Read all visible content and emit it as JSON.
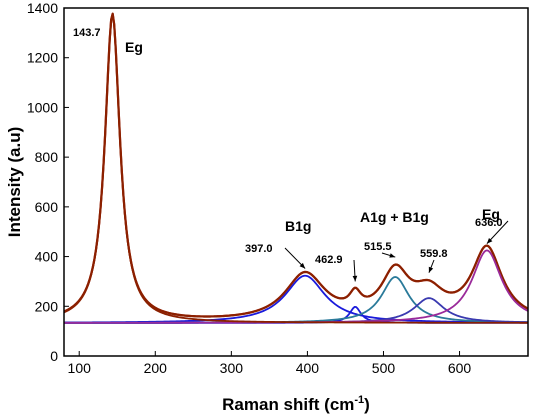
{
  "chart_data": {
    "type": "line",
    "xlabel": "Raman shift (cm",
    "xlabel_sup": "-1",
    "xlabel_close": ")",
    "ylabel": "Intensity (a.u)",
    "xlim": [
      80,
      690
    ],
    "ylim": [
      0,
      1400
    ],
    "x_ticks": [
      100,
      200,
      300,
      400,
      500,
      600
    ],
    "y_ticks": [
      0,
      200,
      400,
      600,
      800,
      1000,
      1200,
      1400
    ],
    "baseline": 133,
    "peaks": [
      {
        "center": 143.7,
        "height": 1240,
        "width": 12
      },
      {
        "center": 397.0,
        "height": 190,
        "width": 32
      },
      {
        "center": 462.9,
        "height": 65,
        "width": 9
      },
      {
        "center": 515.5,
        "height": 185,
        "width": 22
      },
      {
        "center": 559.8,
        "height": 100,
        "width": 24
      },
      {
        "center": 636.0,
        "height": 292,
        "width": 24
      }
    ],
    "series": [
      {
        "color": "#c0392b",
        "type": "sum"
      },
      {
        "color": "#8b2000",
        "type": "sum"
      },
      {
        "color": "#1a1adb",
        "peak": 1
      },
      {
        "color": "#1a1adb",
        "peak": 2
      },
      {
        "color": "#2a7a9a",
        "peak": 3
      },
      {
        "color": "#3a3ab0",
        "peak": 4
      },
      {
        "color": "#9a2a9a",
        "peak": 5
      },
      {
        "color": "#8b2000",
        "peak": 0
      }
    ],
    "annotations": [
      {
        "text": "143.7",
        "x": 143.7,
        "y": 1375
      },
      {
        "text": "397.0",
        "x": 397.0,
        "y": 352
      },
      {
        "text": "462.9",
        "x": 462.9,
        "y": 300
      },
      {
        "text": "515.5",
        "x": 515.5,
        "y": 398
      },
      {
        "text": "559.8",
        "x": 559.8,
        "y": 335
      },
      {
        "text": "636.0",
        "x": 636.0,
        "y": 452
      }
    ],
    "mode_labels": [
      {
        "text": "Eg",
        "x": 143.7
      },
      {
        "text": "B1g",
        "x": 397.0
      },
      {
        "text": "A1g + B1g",
        "x": 515.5
      },
      {
        "text": "Eg",
        "x": 636.0
      }
    ]
  }
}
